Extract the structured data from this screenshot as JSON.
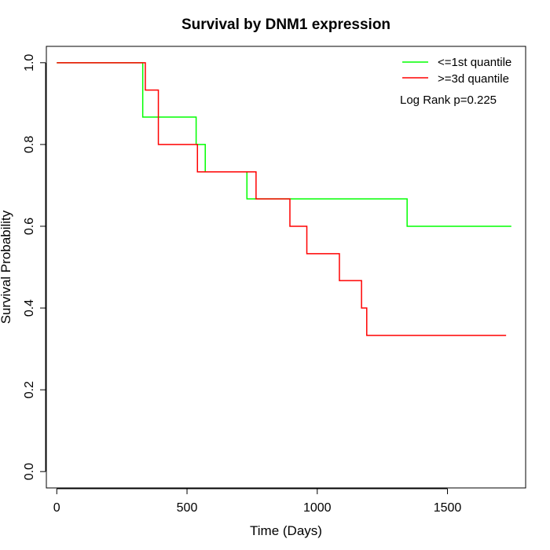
{
  "chart_data": {
    "type": "line",
    "title": "Survival by DNM1 expression",
    "xlabel": "Time (Days)",
    "ylabel": "Survival Probability",
    "xlim": [
      -40,
      1800
    ],
    "ylim": [
      -0.04,
      1.04
    ],
    "x_ticks": [
      0,
      500,
      1000,
      1500
    ],
    "y_ticks": [
      0.0,
      0.2,
      0.4,
      0.6,
      0.8,
      1.0
    ],
    "x_tick_labels": [
      "0",
      "500",
      "1000",
      "1500"
    ],
    "y_tick_labels": [
      "0.0",
      "0.2",
      "0.4",
      "0.6",
      "0.8",
      "1.0"
    ],
    "grid": false,
    "legend_position": "top-right",
    "annotation": "Log Rank p=0.225",
    "series": [
      {
        "name": "<=1st quantile",
        "color": "#00ff00",
        "step_x": [
          0,
          330,
          535,
          570,
          730,
          1345,
          1745
        ],
        "step_y": [
          1.0,
          0.867,
          0.8,
          0.733,
          0.667,
          0.6,
          0.6
        ]
      },
      {
        "name": ">=3d quantile",
        "color": "#ff0000",
        "step_x": [
          0,
          340,
          390,
          540,
          765,
          895,
          960,
          1085,
          1170,
          1190,
          1725
        ],
        "step_y": [
          1.0,
          0.933,
          0.8,
          0.733,
          0.667,
          0.6,
          0.533,
          0.467,
          0.4,
          0.333,
          0.333
        ]
      }
    ]
  }
}
